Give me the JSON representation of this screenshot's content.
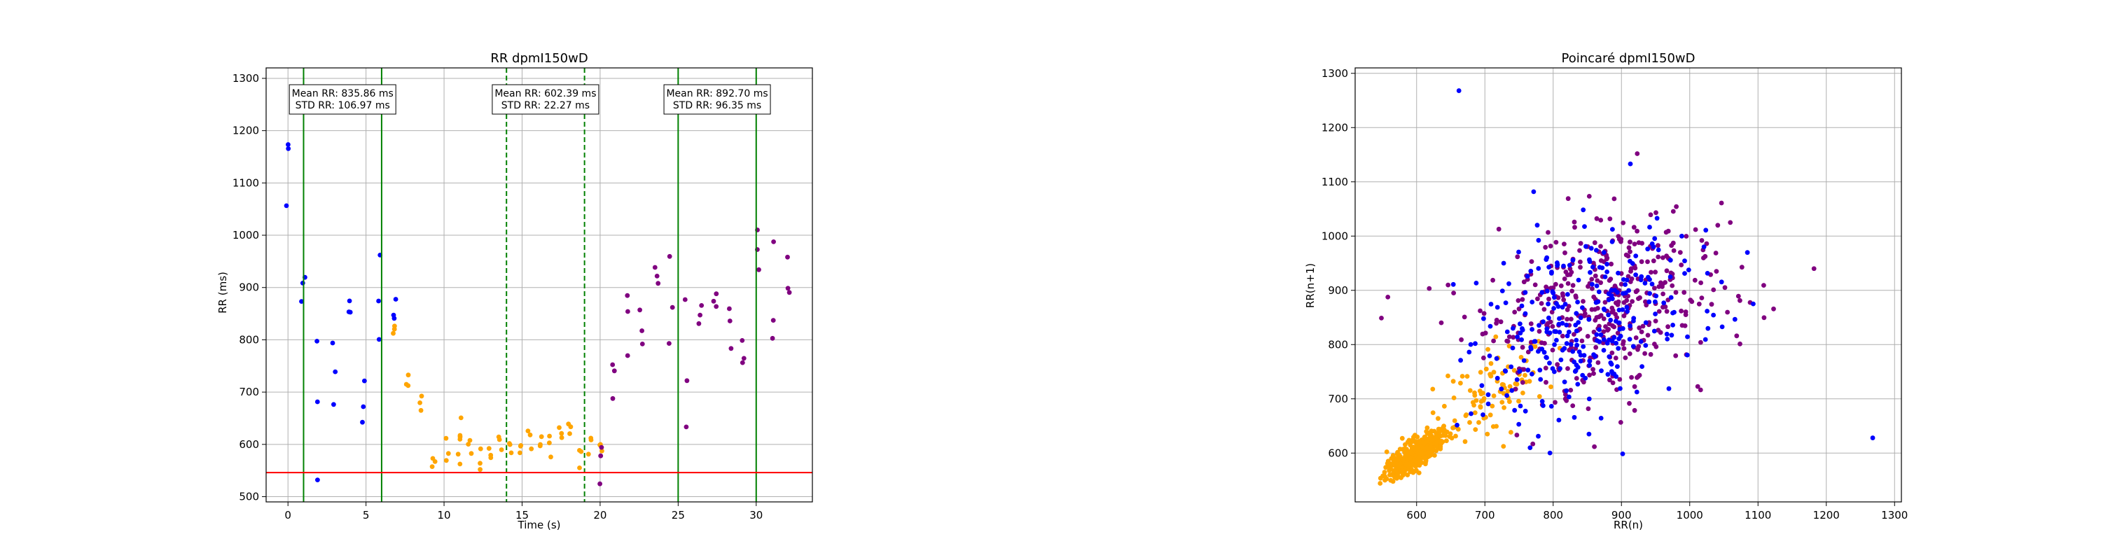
{
  "chart_data": [
    {
      "type": "scatter",
      "title": "RR dpmI150wD",
      "xlabel": "Time (s)",
      "ylabel": "RR (ms)",
      "xlim": [
        -1.4,
        33.6
      ],
      "ylim": [
        490,
        1320
      ],
      "xticks": [
        0,
        5,
        10,
        15,
        20,
        25,
        30
      ],
      "yticks": [
        500,
        600,
        700,
        800,
        900,
        1000,
        1100,
        1200,
        1300
      ],
      "grid": true,
      "colors": {
        "baseline": "#0000ff",
        "transition": "#ffa500",
        "recovery": "#800080",
        "window_line": "#008000",
        "threshold": "#ff0000"
      },
      "segments": [
        {
          "color_key": "baseline",
          "t_start": 0,
          "t_end": 6.8,
          "profile": "flat",
          "mean_start": 850,
          "mean_end": 840,
          "spread": 110
        },
        {
          "color_key": "transition",
          "t_start": 6.8,
          "t_end": 11.0,
          "profile": "decay",
          "mean_start": 800,
          "mean_end": 590,
          "spread": 30
        },
        {
          "color_key": "transition",
          "t_start": 11.0,
          "t_end": 20.0,
          "profile": "flat",
          "mean_start": 598,
          "mean_end": 608,
          "spread": 22
        },
        {
          "color_key": "recovery",
          "t_start": 20.0,
          "t_end": 20.8,
          "profile": "rise",
          "mean_start": 630,
          "mean_end": 790,
          "spread": 35
        },
        {
          "color_key": "recovery",
          "t_start": 20.8,
          "t_end": 32.0,
          "profile": "flat",
          "mean_start": 860,
          "mean_end": 880,
          "spread": 95
        }
      ],
      "vertical_lines": [
        {
          "x": 1.0,
          "style": "solid"
        },
        {
          "x": 6.0,
          "style": "solid"
        },
        {
          "x": 14.0,
          "style": "dashed"
        },
        {
          "x": 19.0,
          "style": "dashed"
        },
        {
          "x": 25.0,
          "style": "solid"
        },
        {
          "x": 30.0,
          "style": "solid"
        }
      ],
      "horizontal_lines": [
        {
          "y": 546,
          "color_key": "threshold"
        }
      ],
      "annotations": [
        {
          "x": 3.5,
          "lines": [
            "Mean RR: 835.86 ms",
            "STD RR: 106.97 ms"
          ]
        },
        {
          "x": 16.5,
          "lines": [
            "Mean RR: 602.39 ms",
            "STD RR: 22.27 ms"
          ]
        },
        {
          "x": 27.5,
          "lines": [
            "Mean RR: 892.70 ms",
            "STD RR: 96.35 ms"
          ]
        }
      ]
    },
    {
      "type": "scatter",
      "title": "Poincaré dpmI150wD",
      "xlabel": "RR(n)",
      "ylabel": "RR(n+1)",
      "xlim": [
        510,
        1310
      ],
      "ylim": [
        510,
        1310
      ],
      "xticks": [
        600,
        700,
        800,
        900,
        1000,
        1100,
        1200,
        1300
      ],
      "yticks": [
        600,
        700,
        800,
        900,
        1000,
        1100,
        1200,
        1300
      ],
      "grid": true,
      "clusters": [
        {
          "color_key": "transition",
          "cx": 600,
          "cy": 600,
          "along": 30,
          "across": 10,
          "count": 430
        },
        {
          "color_key": "transition",
          "cx": 710,
          "cy": 710,
          "along": 55,
          "across": 30,
          "count": 90
        },
        {
          "color_key": "recovery",
          "cx": 870,
          "cy": 880,
          "along": 100,
          "across": 75,
          "count": 430
        },
        {
          "color_key": "baseline",
          "cx": 850,
          "cy": 845,
          "along": 105,
          "across": 75,
          "count": 300
        }
      ],
      "outliers": [
        {
          "x": 662,
          "y": 1268,
          "color_key": "baseline"
        },
        {
          "x": 1268,
          "y": 628,
          "color_key": "baseline"
        },
        {
          "x": 1182,
          "y": 940,
          "color_key": "recovery"
        }
      ]
    }
  ]
}
